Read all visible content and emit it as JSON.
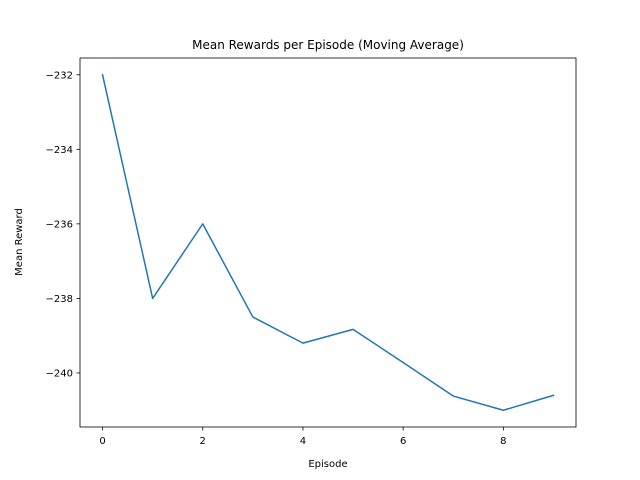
{
  "chart_data": {
    "type": "line",
    "title": "Mean Rewards per Episode (Moving Average)",
    "xlabel": "Episode",
    "ylabel": "Mean Reward",
    "xlim": [
      -0.45,
      9.45
    ],
    "ylim": [
      -241.45,
      -231.55
    ],
    "xticks": [
      0,
      2,
      4,
      6,
      8
    ],
    "xtick_labels": [
      "0",
      "2",
      "4",
      "6",
      "8"
    ],
    "yticks": [
      -240,
      -238,
      -236,
      -234,
      -232
    ],
    "ytick_labels": [
      "−240",
      "−238",
      "−236",
      "−234",
      "−232"
    ],
    "grid": false,
    "series": [
      {
        "color": "#1f77b4",
        "x": [
          0,
          1,
          2,
          3,
          4,
          5,
          6,
          7,
          8,
          9
        ],
        "y": [
          -232.0,
          -238.0,
          -236.0,
          -238.5,
          -239.2,
          -238.83,
          -239.72,
          -240.62,
          -241.0,
          -240.6
        ]
      }
    ]
  }
}
